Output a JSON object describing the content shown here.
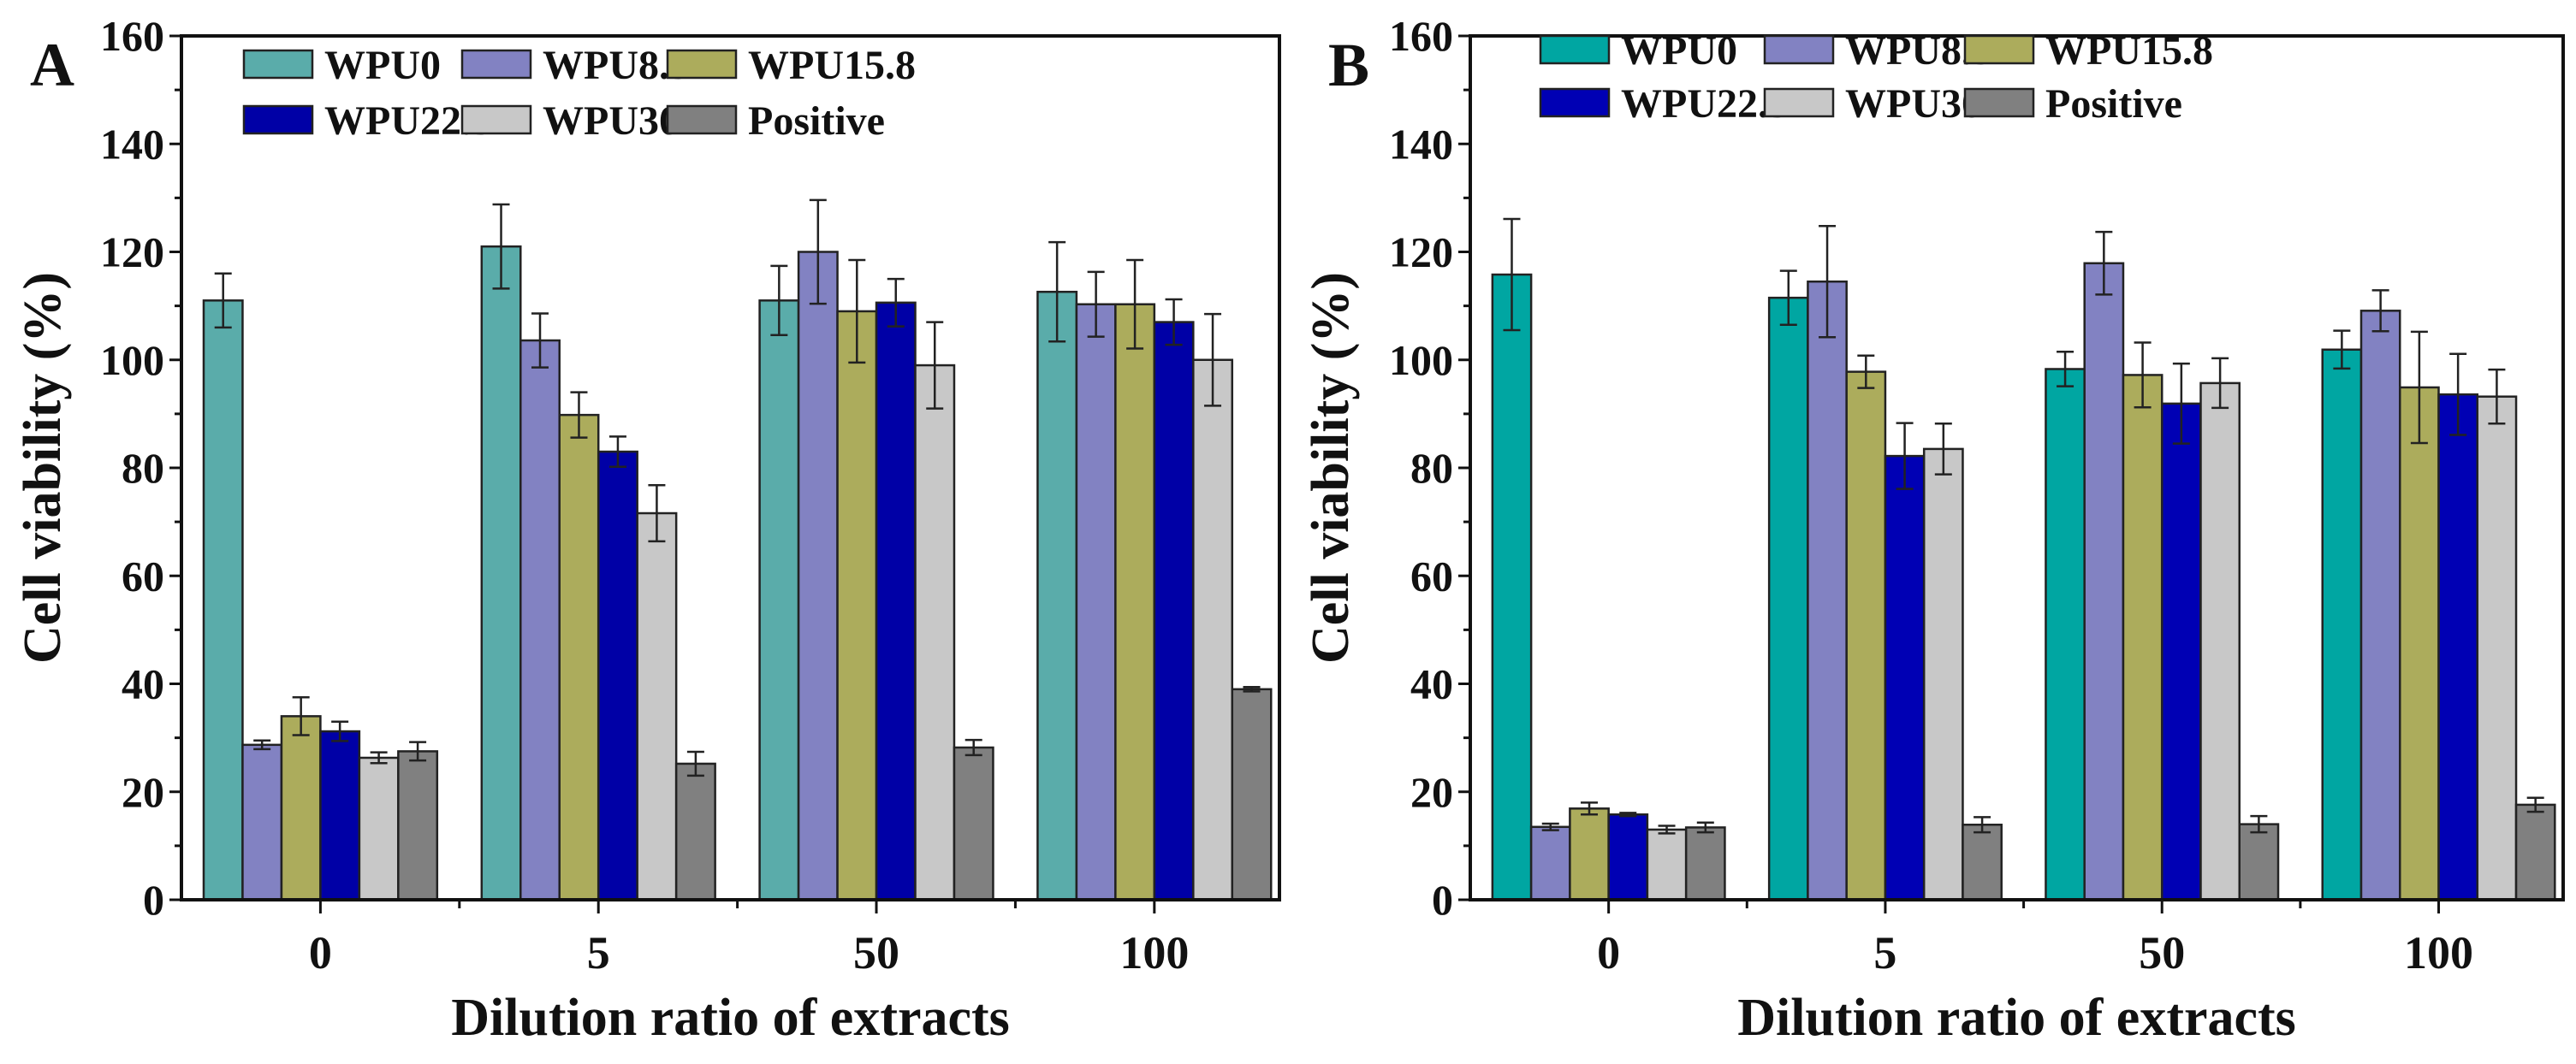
{
  "chart_data": [
    {
      "type": "bar",
      "panel_label": "A",
      "xlabel": "Dilution ratio of extracts",
      "ylabel": "Cell viability (%)",
      "ylim": [
        0,
        160
      ],
      "yticks": [
        "0",
        "20",
        "40",
        "60",
        "80",
        "100",
        "120",
        "140",
        "160"
      ],
      "categories": [
        "0",
        "5",
        "50",
        "100"
      ],
      "legend_position": "top",
      "series": [
        {
          "name": "WPU0",
          "color": "#5aacaa",
          "values": [
            111,
            121,
            111,
            112.6
          ],
          "errors": [
            5,
            7.8,
            6.4,
            9.2
          ]
        },
        {
          "name": "WPU8.5",
          "color": "#8282c2",
          "values": [
            28.7,
            103.6,
            120,
            110.3
          ],
          "errors": [
            0.8,
            5,
            9.6,
            6
          ]
        },
        {
          "name": "WPU15.8",
          "color": "#acac5c",
          "values": [
            34,
            89.8,
            109,
            110.3
          ],
          "errors": [
            3.5,
            4.2,
            9.5,
            8.2
          ]
        },
        {
          "name": "WPU22.3",
          "color": "#0000a6",
          "values": [
            31.2,
            83,
            110.6,
            107
          ],
          "errors": [
            1.8,
            2.8,
            4.4,
            4.2
          ]
        },
        {
          "name": "WPU30",
          "color": "#c8c8c8",
          "values": [
            26.3,
            71.6,
            99,
            100
          ],
          "errors": [
            1,
            5.2,
            8,
            8.5
          ]
        },
        {
          "name": "Positive",
          "color": "#808080",
          "values": [
            27.5,
            25.2,
            28.2,
            39
          ],
          "errors": [
            1.7,
            2.2,
            1.4,
            0.4
          ]
        }
      ]
    },
    {
      "type": "bar",
      "panel_label": "B",
      "xlabel": "Dilution ratio of extracts",
      "ylabel": "Cell viability (%)",
      "ylim": [
        0,
        160
      ],
      "yticks": [
        "0",
        "20",
        "40",
        "60",
        "80",
        "100",
        "120",
        "140",
        "160"
      ],
      "categories": [
        "0",
        "5",
        "50",
        "100"
      ],
      "legend_position": "top",
      "series": [
        {
          "name": "WPU0",
          "color": "#00a6a2",
          "values": [
            115.8,
            111.5,
            98.3,
            101.9
          ],
          "errors": [
            10.3,
            5,
            3.2,
            3.5
          ]
        },
        {
          "name": "WPU8.5",
          "color": "#8282c2",
          "values": [
            13.5,
            114.5,
            117.9,
            109.1
          ],
          "errors": [
            0.6,
            10.3,
            5.8,
            3.8
          ]
        },
        {
          "name": "WPU15.8",
          "color": "#acac5c",
          "values": [
            16.9,
            97.8,
            97.2,
            94.9
          ],
          "errors": [
            1.1,
            3,
            6,
            10.3
          ]
        },
        {
          "name": "WPU22.3",
          "color": "#0000b4",
          "values": [
            15.8,
            82.2,
            91.9,
            93.6
          ],
          "errors": [
            0.3,
            6.1,
            7.4,
            7.5
          ]
        },
        {
          "name": "WPU30",
          "color": "#c8c8c8",
          "values": [
            13,
            83.5,
            95.7,
            93.2
          ],
          "errors": [
            0.7,
            4.7,
            4.6,
            5
          ]
        },
        {
          "name": "Positive",
          "color": "#808080",
          "values": [
            13.4,
            13.9,
            14,
            17.6
          ],
          "errors": [
            0.9,
            1.4,
            1.5,
            1.3
          ]
        }
      ]
    }
  ]
}
